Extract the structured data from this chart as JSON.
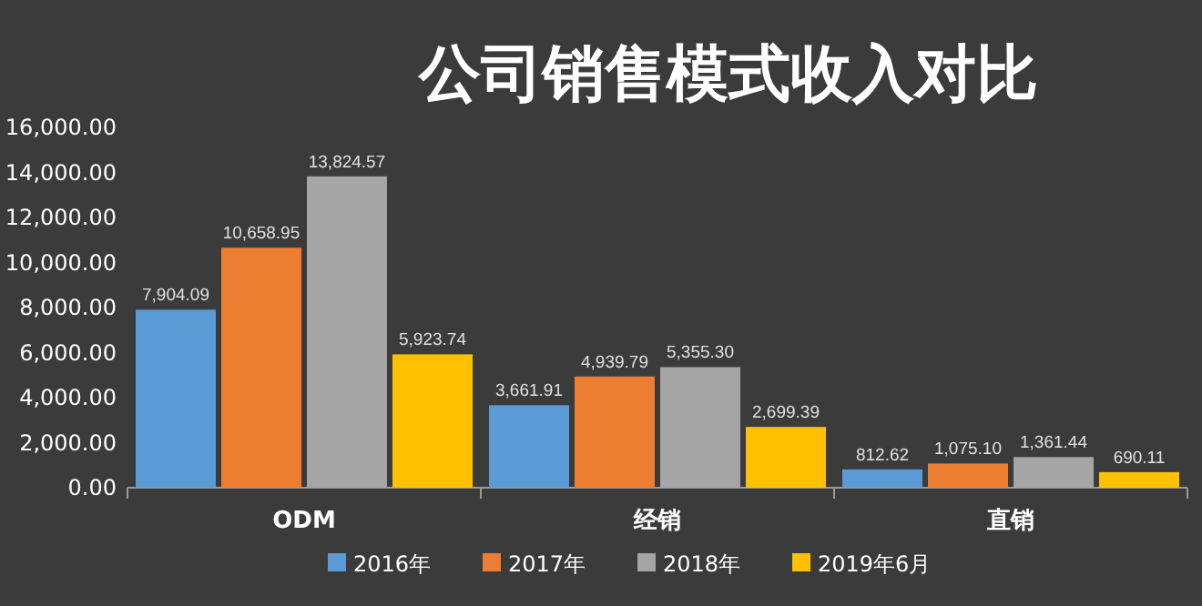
{
  "chart_data": {
    "type": "bar",
    "title": "公司销售模式收入对比",
    "categories": [
      "ODM",
      "经销",
      "直销"
    ],
    "series": [
      {
        "name": "2016年",
        "color": "#5b9bd5",
        "values": [
          7904.09,
          3661.91,
          812.62
        ],
        "value_labels": [
          "7,904.09",
          "3,661.91",
          "812.62"
        ]
      },
      {
        "name": "2017年",
        "color": "#ed7d31",
        "values": [
          10658.95,
          4939.79,
          1075.1
        ],
        "value_labels": [
          "10,658.95",
          "4,939.79",
          "1,075.10"
        ]
      },
      {
        "name": "2018年",
        "color": "#a5a5a5",
        "values": [
          13824.57,
          5355.3,
          1361.44
        ],
        "value_labels": [
          "13,824.57",
          "5,355.30",
          "1,361.44"
        ]
      },
      {
        "name": "2019年6月",
        "color": "#ffc000",
        "values": [
          5923.74,
          2699.39,
          690.11
        ],
        "value_labels": [
          "5,923.74",
          "2,699.39",
          "690.11"
        ]
      }
    ],
    "ylim": [
      0,
      16000
    ],
    "yticks": [
      {
        "value": 0,
        "label": "0.00"
      },
      {
        "value": 2000,
        "label": "2,000.00"
      },
      {
        "value": 4000,
        "label": "4,000.00"
      },
      {
        "value": 6000,
        "label": "6,000.00"
      },
      {
        "value": 8000,
        "label": "8,000.00"
      },
      {
        "value": 10000,
        "label": "10,000.00"
      },
      {
        "value": 12000,
        "label": "12,000.00"
      },
      {
        "value": 14000,
        "label": "14,000.00"
      },
      {
        "value": 16000,
        "label": "16,000.00"
      }
    ],
    "legend": "bottom"
  }
}
